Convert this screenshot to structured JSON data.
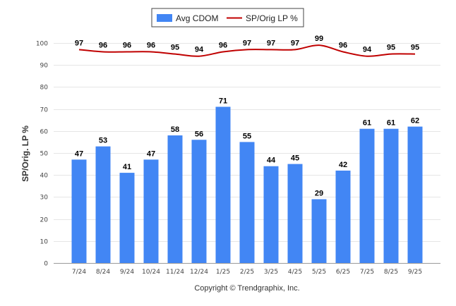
{
  "chart_data": {
    "type": "bar",
    "categories": [
      "7/24",
      "8/24",
      "9/24",
      "10/24",
      "11/24",
      "12/24",
      "1/25",
      "2/25",
      "3/25",
      "4/25",
      "5/25",
      "6/25",
      "7/25",
      "8/25",
      "9/25"
    ],
    "series": [
      {
        "name": "Avg CDOM",
        "type": "bar",
        "color": "#4286f4",
        "values": [
          47,
          53,
          41,
          47,
          58,
          56,
          71,
          55,
          44,
          45,
          29,
          42,
          61,
          61,
          62
        ]
      },
      {
        "name": "SP/Orig LP %",
        "type": "line",
        "color": "#c00000",
        "values": [
          97,
          96,
          96,
          96,
          95,
          94,
          96,
          97,
          97,
          97,
          99,
          96,
          94,
          95,
          95
        ]
      }
    ],
    "ylabel": "SP/Orig. LP %",
    "ylim": [
      0,
      100
    ],
    "yticks": [
      0,
      10,
      20,
      30,
      40,
      50,
      60,
      70,
      80,
      90,
      100
    ],
    "grid": true,
    "legend_position": "top-center",
    "copyright": "Copyright © Trendgraphix, Inc."
  }
}
